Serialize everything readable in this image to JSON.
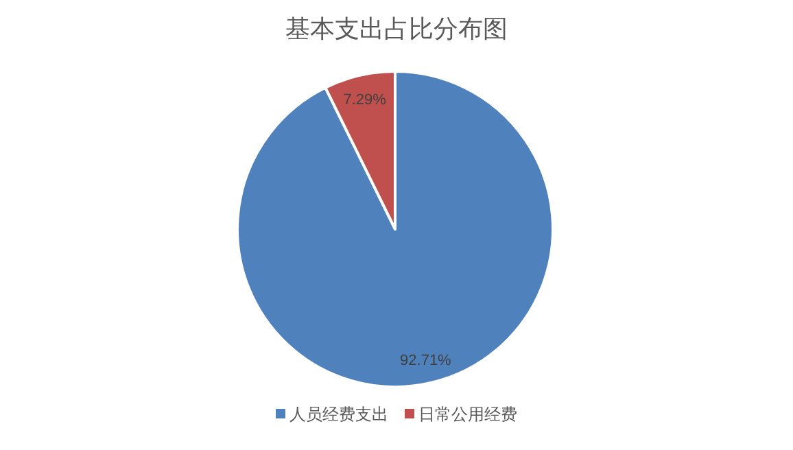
{
  "chart_data": {
    "type": "pie",
    "title": "基本支出占比分布图",
    "categories": [
      "人员经费支出",
      "日常公用经费"
    ],
    "values": [
      92.71,
      7.29
    ],
    "colors": [
      "#4f81bd",
      "#c0504d"
    ],
    "value_labels": [
      "92.71%",
      "7.29%"
    ],
    "legend": "bottom"
  }
}
